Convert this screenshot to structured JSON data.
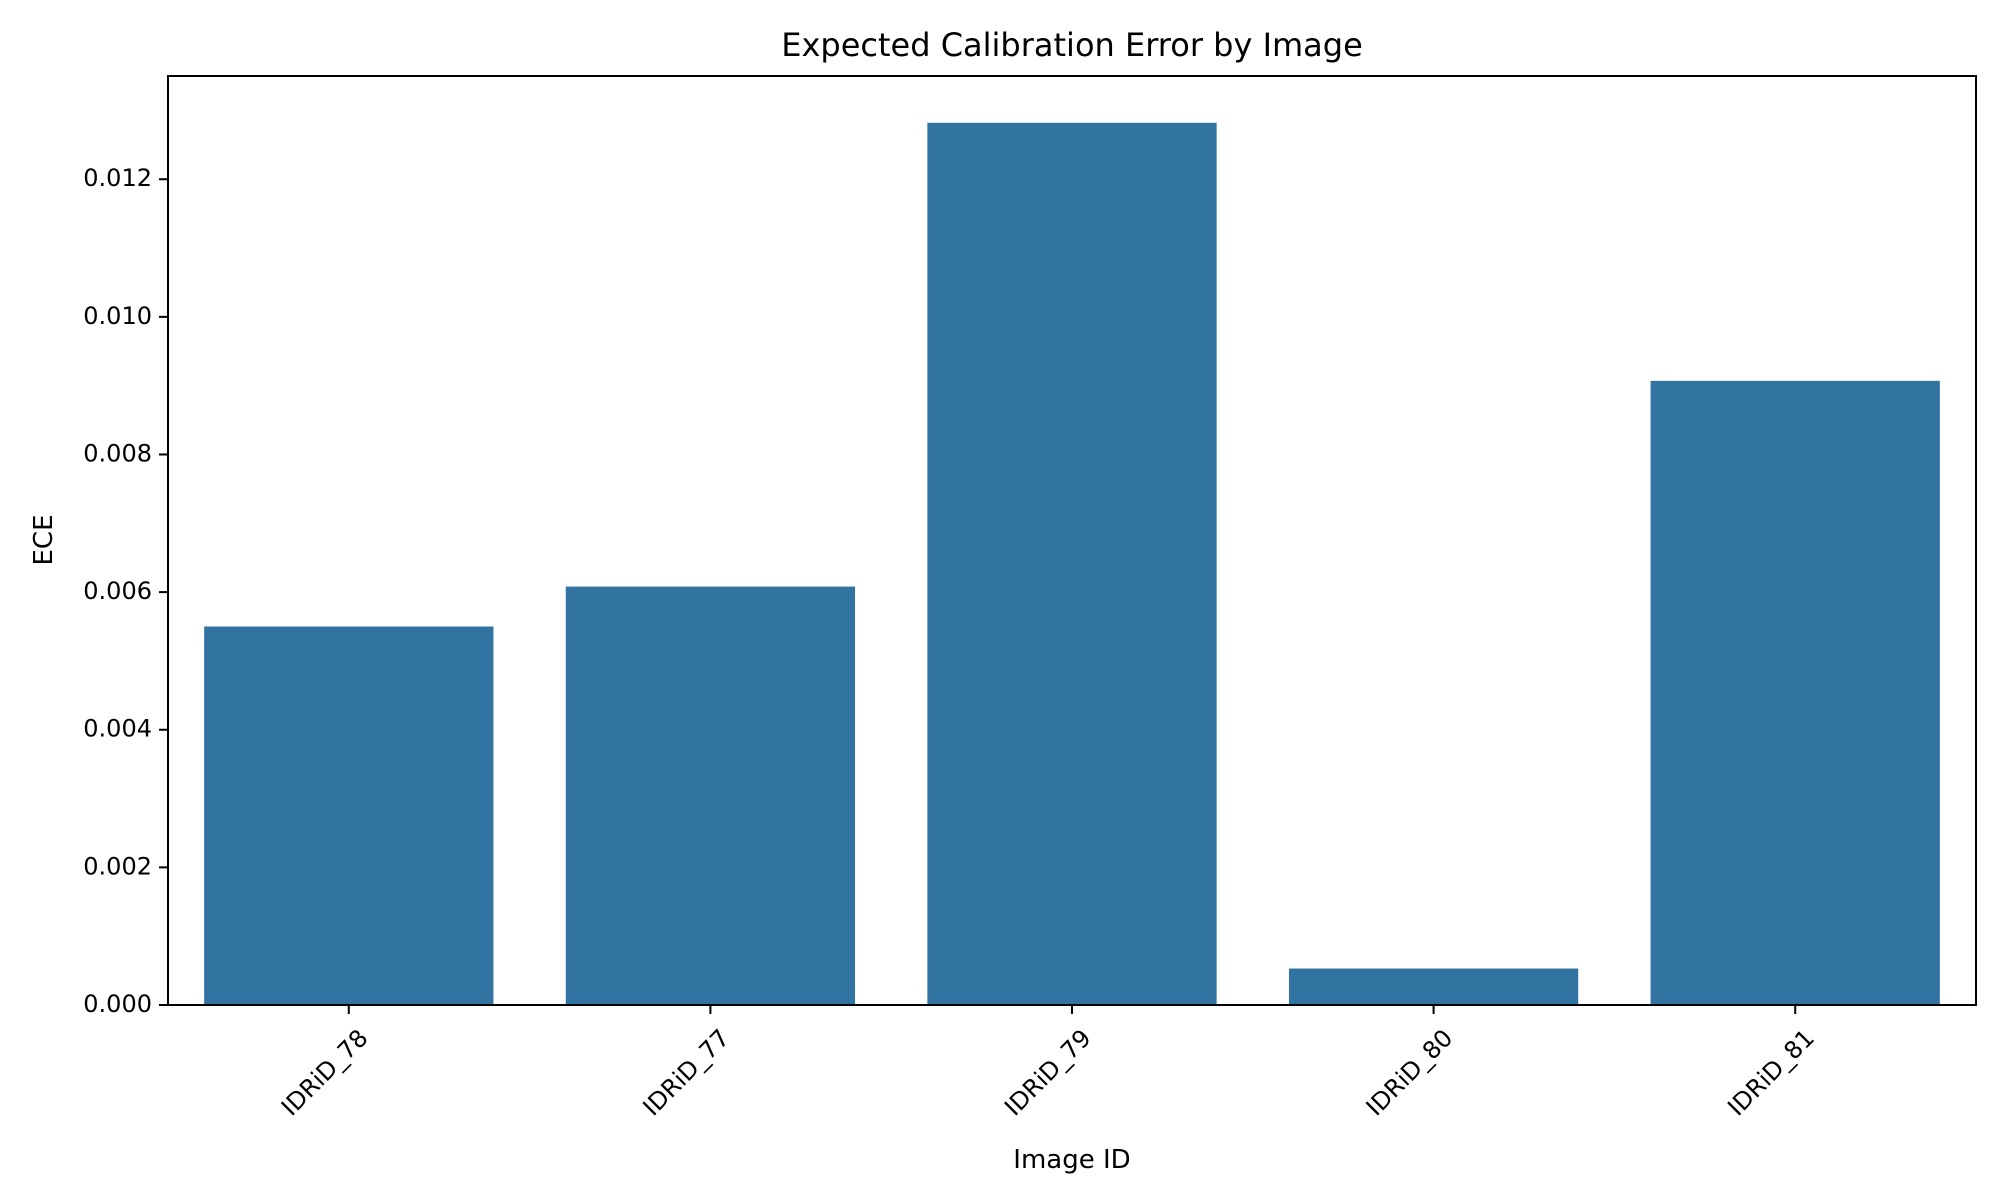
{
  "chart_data": {
    "type": "bar",
    "title": "Expected Calibration Error by Image",
    "xlabel": "Image ID",
    "ylabel": "ECE",
    "categories": [
      "IDRiD_78",
      "IDRiD_77",
      "IDRiD_79",
      "IDRiD_80",
      "IDRiD_81"
    ],
    "values": [
      0.0055,
      0.00608,
      0.01282,
      0.00053,
      0.00907
    ],
    "ylim": [
      0,
      0.0135
    ],
    "yticks": [
      0.0,
      0.002,
      0.004,
      0.006,
      0.008,
      0.01,
      0.012
    ],
    "ytick_labels": [
      "0.000",
      "0.002",
      "0.004",
      "0.006",
      "0.008",
      "0.010",
      "0.012"
    ],
    "bar_color": "#3274a1",
    "grid": false,
    "legend": "none",
    "xtick_rotation_deg": 45
  }
}
